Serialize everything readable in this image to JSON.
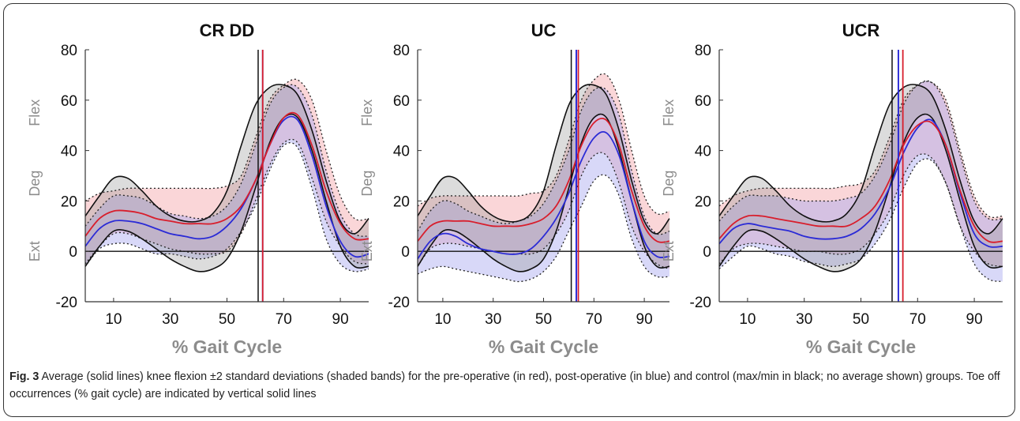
{
  "figure": {
    "caption_label": "Fig. 3",
    "caption_text": " Average (solid lines) knee flexion ±2 standard deviations (shaded bands) for the pre-operative (in red), post-operative (in blue) and control (max/min in black; no average shown) groups. Toe off occurrences (% gait cycle) are indicated by vertical solid lines"
  },
  "colors": {
    "pre": "#d81e2c",
    "post": "#2b2bd6",
    "control": "#111111",
    "pre_band": "#f4a3a8",
    "post_band": "#a9a9f0",
    "control_band": "#9a9a9a",
    "axis_label": "#8c8c8c"
  },
  "chart_data": [
    {
      "type": "line",
      "title": "CR DD",
      "xlabel": "% Gait Cycle",
      "ylabel_words": [
        "Ext",
        "Deg",
        "Flex"
      ],
      "xlim": [
        0,
        100
      ],
      "ylim": [
        -20,
        80
      ],
      "xticks": [
        10,
        30,
        50,
        70,
        90
      ],
      "yticks": [
        -20,
        0,
        20,
        40,
        60,
        80
      ],
      "x": [
        0,
        5,
        10,
        15,
        20,
        25,
        30,
        35,
        40,
        45,
        50,
        55,
        60,
        65,
        70,
        75,
        80,
        85,
        90,
        95,
        100
      ],
      "series": [
        {
          "group": "pre",
          "mean": [
            6,
            13,
            16,
            16,
            15,
            13,
            12,
            11,
            11,
            11,
            13,
            18,
            28,
            42,
            53,
            54,
            42,
            24,
            11,
            5,
            5
          ],
          "upper": [
            20,
            23,
            24,
            25,
            25,
            25,
            25,
            25,
            25,
            25,
            26,
            30,
            45,
            60,
            66,
            68,
            60,
            40,
            22,
            13,
            13
          ],
          "lower": [
            -5,
            2,
            7,
            7,
            5,
            3,
            1,
            0,
            -1,
            -1,
            0,
            7,
            20,
            34,
            43,
            43,
            29,
            12,
            2,
            -4,
            -5
          ]
        },
        {
          "group": "post",
          "mean": [
            2,
            9,
            12,
            12,
            11,
            9,
            7,
            6,
            5,
            6,
            10,
            17,
            28,
            42,
            52,
            52,
            38,
            18,
            4,
            -2,
            -1
          ],
          "upper": [
            10,
            17,
            22,
            22,
            21,
            18,
            15,
            14,
            13,
            14,
            18,
            27,
            42,
            58,
            65,
            65,
            54,
            32,
            15,
            7,
            6
          ],
          "lower": [
            -6,
            1,
            3,
            3,
            1,
            -1,
            -1,
            -2,
            -3,
            -2,
            1,
            8,
            18,
            32,
            42,
            41,
            25,
            5,
            -5,
            -8,
            -7
          ]
        },
        {
          "group": "control",
          "upper": [
            14,
            22,
            29,
            29,
            24,
            18,
            14,
            12,
            12,
            15,
            24,
            42,
            58,
            65,
            66,
            62,
            48,
            28,
            12,
            7,
            13
          ],
          "lower": [
            -6,
            2,
            8,
            8,
            5,
            1,
            -3,
            -6,
            -8,
            -7,
            -3,
            8,
            25,
            43,
            53,
            53,
            40,
            20,
            2,
            -6,
            -6
          ]
        }
      ],
      "toe_off": {
        "control": 61,
        "pre": 62.6,
        "post": 62.6
      }
    },
    {
      "type": "line",
      "title": "UC",
      "xlabel": "% Gait Cycle",
      "ylabel_words": [
        "Ext",
        "Deg",
        "Flex"
      ],
      "xlim": [
        0,
        100
      ],
      "ylim": [
        -20,
        80
      ],
      "xticks": [
        10,
        30,
        50,
        70,
        90
      ],
      "yticks": [
        -20,
        0,
        20,
        40,
        60,
        80
      ],
      "x": [
        0,
        5,
        10,
        15,
        20,
        25,
        30,
        35,
        40,
        45,
        50,
        55,
        60,
        65,
        70,
        75,
        80,
        85,
        90,
        95,
        100
      ],
      "series": [
        {
          "group": "pre",
          "mean": [
            4,
            10,
            12,
            12,
            12,
            11,
            10,
            10,
            10,
            11,
            13,
            18,
            28,
            42,
            51,
            52,
            42,
            24,
            10,
            4,
            4
          ],
          "upper": [
            18,
            21,
            22,
            22,
            22,
            22,
            22,
            22,
            22,
            23,
            24,
            30,
            44,
            60,
            68,
            70,
            60,
            40,
            22,
            15,
            16
          ],
          "lower": [
            -6,
            1,
            3,
            3,
            2,
            1,
            0,
            -1,
            -1,
            -1,
            1,
            7,
            16,
            30,
            38,
            38,
            27,
            10,
            0,
            -5,
            -7
          ]
        },
        {
          "group": "post",
          "mean": [
            -3,
            4,
            7,
            6,
            3,
            1,
            0,
            -1,
            -1,
            1,
            6,
            13,
            23,
            36,
            45,
            47,
            38,
            20,
            4,
            -2,
            -2
          ],
          "upper": [
            8,
            16,
            20,
            19,
            16,
            14,
            12,
            11,
            12,
            14,
            19,
            28,
            40,
            56,
            64,
            64,
            54,
            32,
            14,
            7,
            8
          ],
          "lower": [
            -9,
            -7,
            -6,
            -7,
            -8,
            -9,
            -10,
            -11,
            -12,
            -11,
            -8,
            -2,
            8,
            18,
            28,
            30,
            22,
            5,
            -6,
            -10,
            -10
          ]
        },
        {
          "group": "control",
          "upper": [
            14,
            22,
            29,
            29,
            24,
            18,
            14,
            12,
            12,
            15,
            24,
            42,
            58,
            65,
            66,
            62,
            48,
            28,
            12,
            7,
            13
          ],
          "lower": [
            -6,
            2,
            8,
            8,
            5,
            1,
            -3,
            -6,
            -8,
            -7,
            -3,
            8,
            25,
            43,
            53,
            53,
            40,
            20,
            2,
            -6,
            -6
          ]
        }
      ],
      "toe_off": {
        "control": 61,
        "pre": 63.8,
        "post": 63.0
      }
    },
    {
      "type": "line",
      "title": "UCR",
      "xlabel": "% Gait Cycle",
      "ylabel_words": [
        "Ext",
        "Deg",
        "Flex"
      ],
      "xlim": [
        0,
        100
      ],
      "ylim": [
        -20,
        80
      ],
      "xticks": [
        10,
        30,
        50,
        70,
        90
      ],
      "yticks": [
        -20,
        0,
        20,
        40,
        60,
        80
      ],
      "x": [
        0,
        5,
        10,
        15,
        20,
        25,
        30,
        35,
        40,
        45,
        50,
        55,
        60,
        65,
        70,
        75,
        80,
        85,
        90,
        95,
        100
      ],
      "series": [
        {
          "group": "pre",
          "mean": [
            5,
            11,
            14,
            14,
            13,
            12,
            11,
            10,
            10,
            10,
            13,
            18,
            28,
            42,
            50,
            51,
            42,
            24,
            10,
            4,
            4
          ],
          "upper": [
            18,
            22,
            24,
            25,
            25,
            25,
            25,
            25,
            25,
            26,
            27,
            32,
            45,
            60,
            66,
            67,
            60,
            40,
            22,
            14,
            14
          ],
          "lower": [
            -5,
            1,
            3,
            3,
            2,
            1,
            0,
            0,
            -1,
            -1,
            1,
            7,
            16,
            30,
            38,
            37,
            27,
            10,
            0,
            -5,
            -6
          ]
        },
        {
          "group": "post",
          "mean": [
            3,
            9,
            11,
            10,
            9,
            8,
            6,
            5,
            5,
            6,
            9,
            15,
            25,
            39,
            49,
            52,
            42,
            23,
            7,
            2,
            2
          ],
          "upper": [
            12,
            18,
            22,
            22,
            22,
            21,
            20,
            20,
            20,
            21,
            23,
            30,
            42,
            58,
            66,
            67,
            58,
            38,
            20,
            13,
            13
          ],
          "lower": [
            -7,
            -2,
            2,
            1,
            -1,
            -2,
            -4,
            -5,
            -6,
            -5,
            -3,
            3,
            12,
            25,
            35,
            36,
            27,
            10,
            -5,
            -11,
            -12
          ]
        },
        {
          "group": "control",
          "upper": [
            14,
            22,
            29,
            29,
            24,
            18,
            14,
            12,
            12,
            15,
            24,
            42,
            58,
            65,
            66,
            62,
            48,
            28,
            12,
            7,
            13
          ],
          "lower": [
            -6,
            2,
            8,
            8,
            5,
            1,
            -3,
            -6,
            -8,
            -7,
            -3,
            8,
            25,
            43,
            53,
            53,
            40,
            20,
            2,
            -6,
            -6
          ]
        }
      ],
      "toe_off": {
        "control": 61,
        "pre": 64.8,
        "post": 63.2
      }
    }
  ]
}
